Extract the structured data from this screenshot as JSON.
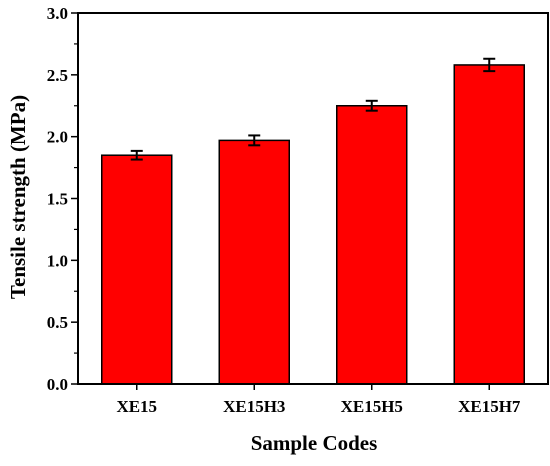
{
  "chart_data": {
    "type": "bar",
    "title": "",
    "xlabel": "Sample Codes",
    "ylabel": "Tensile strength (MPa)",
    "categories": [
      "XE15",
      "XE15H3",
      "XE15H5",
      "XE15H7"
    ],
    "values": [
      1.85,
      1.97,
      2.25,
      2.58
    ],
    "errors": [
      0.035,
      0.04,
      0.04,
      0.05
    ],
    "ylim": [
      0.0,
      3.0
    ],
    "yticks": [
      "0.0",
      "0.5",
      "1.0",
      "1.5",
      "2.0",
      "2.5",
      "3.0"
    ],
    "grid": false,
    "legend": "none",
    "bar_color": "#ff0000",
    "edge_color": "#000000"
  }
}
